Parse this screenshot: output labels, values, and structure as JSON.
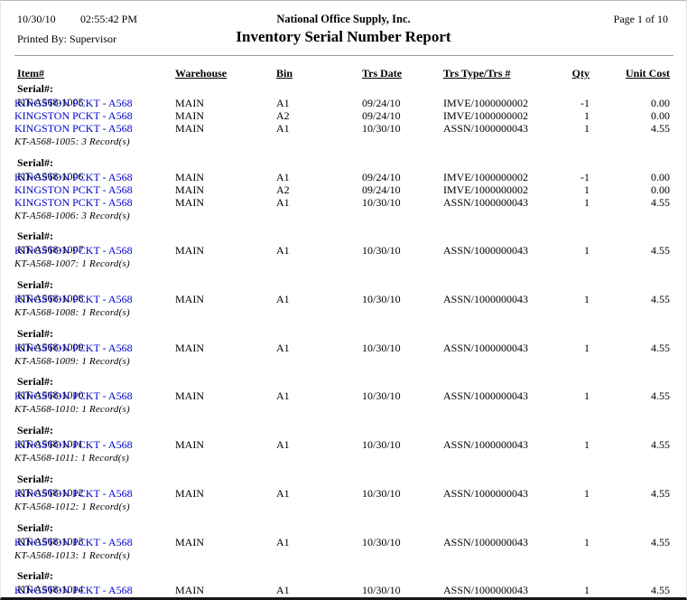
{
  "header": {
    "date": "10/30/10",
    "time": "02:55:42 PM",
    "printed_by": "Printed By: Supervisor",
    "company": "National Office Supply, Inc.",
    "title": "Inventory Serial Number Report",
    "page_label": "Page 1 of 10"
  },
  "colors": {
    "link_blue": "#0000cc"
  },
  "table": {
    "columns": [
      "Item#",
      "Warehouse",
      "Bin",
      "Trs Date",
      "Trs Type/Trs #",
      "Qty",
      "Unit Cost"
    ],
    "serial_label": "Serial#:",
    "groups": [
      {
        "serial": "KT-A568-1005",
        "rows": [
          {
            "item": "KINGSTON PCKT - A568",
            "warehouse": "MAIN",
            "bin": "A1",
            "trs_date": "09/24/10",
            "trs_type": "IMVE/1000000002",
            "qty": "-1",
            "unit_cost": "0.00"
          },
          {
            "item": "KINGSTON PCKT - A568",
            "warehouse": "MAIN",
            "bin": "A2",
            "trs_date": "09/24/10",
            "trs_type": "IMVE/1000000002",
            "qty": "1",
            "unit_cost": "0.00"
          },
          {
            "item": "KINGSTON PCKT - A568",
            "warehouse": "MAIN",
            "bin": "A1",
            "trs_date": "10/30/10",
            "trs_type": "ASSN/1000000043",
            "qty": "1",
            "unit_cost": "4.55"
          }
        ],
        "footer": "KT-A568-1005: 3 Record(s)"
      },
      {
        "serial": "KT-A568-1006",
        "rows": [
          {
            "item": "KINGSTON PCKT - A568",
            "warehouse": "MAIN",
            "bin": "A1",
            "trs_date": "09/24/10",
            "trs_type": "IMVE/1000000002",
            "qty": "-1",
            "unit_cost": "0.00"
          },
          {
            "item": "KINGSTON PCKT - A568",
            "warehouse": "MAIN",
            "bin": "A2",
            "trs_date": "09/24/10",
            "trs_type": "IMVE/1000000002",
            "qty": "1",
            "unit_cost": "0.00"
          },
          {
            "item": "KINGSTON PCKT - A568",
            "warehouse": "MAIN",
            "bin": "A1",
            "trs_date": "10/30/10",
            "trs_type": "ASSN/1000000043",
            "qty": "1",
            "unit_cost": "4.55"
          }
        ],
        "footer": "KT-A568-1006: 3 Record(s)"
      },
      {
        "serial": "KT-A568-1007",
        "rows": [
          {
            "item": "KINGSTON PCKT - A568",
            "warehouse": "MAIN",
            "bin": "A1",
            "trs_date": "10/30/10",
            "trs_type": "ASSN/1000000043",
            "qty": "1",
            "unit_cost": "4.55"
          }
        ],
        "footer": "KT-A568-1007: 1 Record(s)"
      },
      {
        "serial": "KT-A568-1008",
        "rows": [
          {
            "item": "KINGSTON PCKT - A568",
            "warehouse": "MAIN",
            "bin": "A1",
            "trs_date": "10/30/10",
            "trs_type": "ASSN/1000000043",
            "qty": "1",
            "unit_cost": "4.55"
          }
        ],
        "footer": "KT-A568-1008: 1 Record(s)"
      },
      {
        "serial": "KT-A568-1009",
        "rows": [
          {
            "item": "KINGSTON PCKT - A568",
            "warehouse": "MAIN",
            "bin": "A1",
            "trs_date": "10/30/10",
            "trs_type": "ASSN/1000000043",
            "qty": "1",
            "unit_cost": "4.55"
          }
        ],
        "footer": "KT-A568-1009: 1 Record(s)"
      },
      {
        "serial": "KT-A568-1010",
        "rows": [
          {
            "item": "KINGSTON PCKT - A568",
            "warehouse": "MAIN",
            "bin": "A1",
            "trs_date": "10/30/10",
            "trs_type": "ASSN/1000000043",
            "qty": "1",
            "unit_cost": "4.55"
          }
        ],
        "footer": "KT-A568-1010: 1 Record(s)"
      },
      {
        "serial": "KT-A568-1011",
        "rows": [
          {
            "item": "KINGSTON PCKT - A568",
            "warehouse": "MAIN",
            "bin": "A1",
            "trs_date": "10/30/10",
            "trs_type": "ASSN/1000000043",
            "qty": "1",
            "unit_cost": "4.55"
          }
        ],
        "footer": "KT-A568-1011: 1 Record(s)"
      },
      {
        "serial": "KT-A568-1012",
        "rows": [
          {
            "item": "KINGSTON PCKT - A568",
            "warehouse": "MAIN",
            "bin": "A1",
            "trs_date": "10/30/10",
            "trs_type": "ASSN/1000000043",
            "qty": "1",
            "unit_cost": "4.55"
          }
        ],
        "footer": "KT-A568-1012: 1 Record(s)"
      },
      {
        "serial": "KT-A568-1013",
        "rows": [
          {
            "item": "KINGSTON PCKT - A568",
            "warehouse": "MAIN",
            "bin": "A1",
            "trs_date": "10/30/10",
            "trs_type": "ASSN/1000000043",
            "qty": "1",
            "unit_cost": "4.55"
          }
        ],
        "footer": "KT-A568-1013: 1 Record(s)"
      },
      {
        "serial": "KT-A568-1014",
        "rows": [
          {
            "item": "KINGSTON PCKT - A568",
            "warehouse": "MAIN",
            "bin": "A1",
            "trs_date": "10/30/10",
            "trs_type": "ASSN/1000000043",
            "qty": "1",
            "unit_cost": "4.55"
          }
        ],
        "footer": null
      }
    ]
  }
}
